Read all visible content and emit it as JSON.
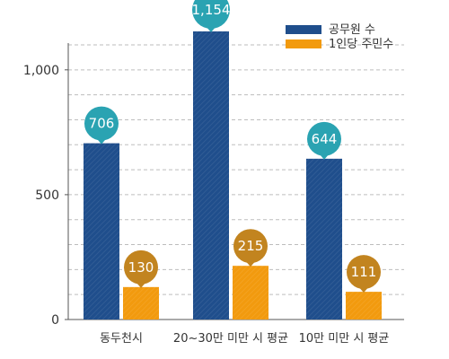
{
  "chart_data": {
    "type": "bar",
    "categories": [
      "동두천시",
      "20~30만 미만 시 평균",
      "10만 미만 시 평균"
    ],
    "series": [
      {
        "name": "공무원 수",
        "values": [
          706,
          1154,
          644
        ],
        "labels": [
          "706",
          "1,154",
          "644"
        ],
        "color": "#1f4e8c",
        "bubble_color": "#2aa3b2"
      },
      {
        "name": "1인당 주민수",
        "values": [
          130,
          215,
          111
        ],
        "labels": [
          "130",
          "215",
          "111"
        ],
        "color": "#f29a0e",
        "bubble_color": "#c2841f"
      }
    ],
    "y_ticks": [
      {
        "value": 0,
        "label": "0"
      },
      {
        "value": 500,
        "label": "500"
      },
      {
        "value": 1000,
        "label": "1,000"
      }
    ],
    "ylim": [
      0,
      1100
    ],
    "grid": true,
    "legend_position": "top-right",
    "title": "",
    "xlabel": "",
    "ylabel": ""
  }
}
